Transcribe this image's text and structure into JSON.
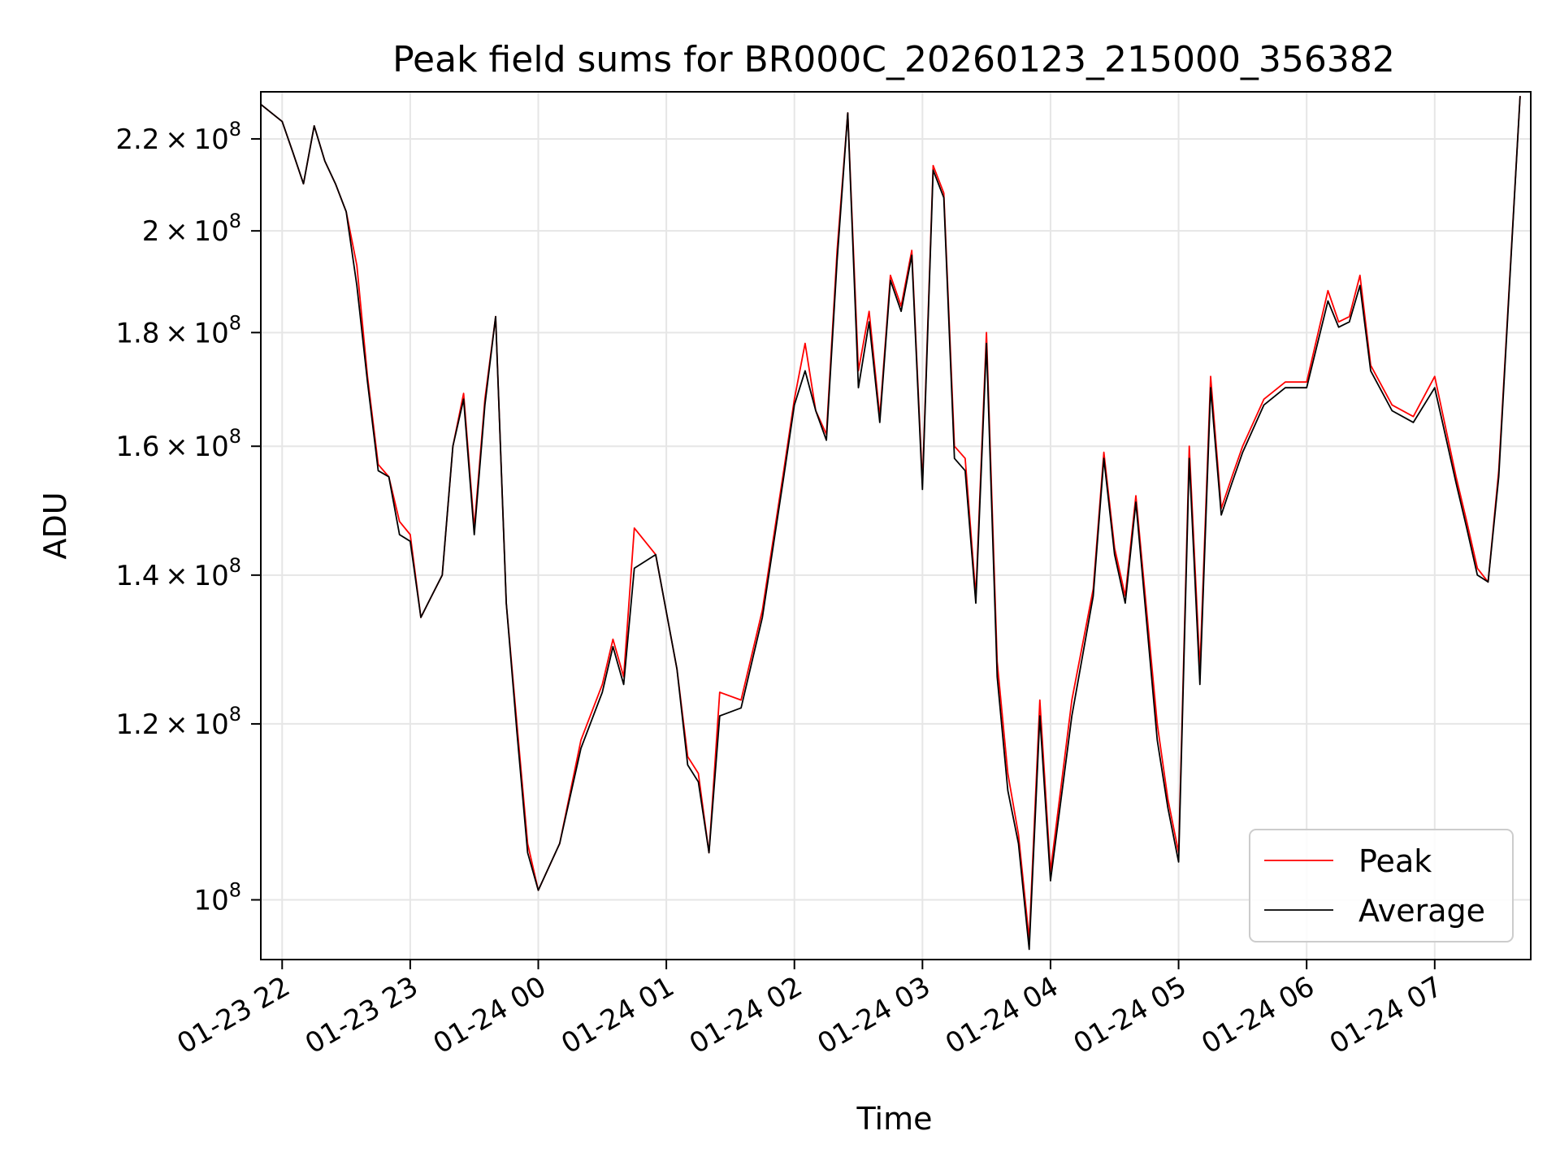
{
  "chart_data": {
    "type": "line",
    "title": "Peak field sums for BR000C_20260123_215000_356382",
    "xlabel": "Time",
    "ylabel": "ADU",
    "y_scale": "log",
    "grid": true,
    "legend_position": "bottom-right",
    "xlim": [
      "2026-01-23 21:50",
      "2026-01-24 07:45"
    ],
    "ylim": [
      94000000,
      231000000
    ],
    "x_ticks": [
      "01-23 22",
      "01-23 23",
      "01-24 00",
      "01-24 01",
      "01-24 02",
      "01-24 03",
      "01-24 04",
      "01-24 05",
      "01-24 06",
      "01-24 07"
    ],
    "y_ticks": [
      {
        "value": 100000000,
        "mantissa": "",
        "exponent": "8"
      },
      {
        "value": 120000000,
        "mantissa": "1.2",
        "exponent": "8"
      },
      {
        "value": 140000000,
        "mantissa": "1.4",
        "exponent": "8"
      },
      {
        "value": 160000000,
        "mantissa": "1.6",
        "exponent": "8"
      },
      {
        "value": 180000000,
        "mantissa": "1.8",
        "exponent": "8"
      },
      {
        "value": 200000000,
        "mantissa": "2",
        "exponent": "8"
      },
      {
        "value": 220000000,
        "mantissa": "2.2",
        "exponent": "8"
      }
    ],
    "series": [
      {
        "name": "Peak",
        "color": "#ff0000"
      },
      {
        "name": "Average",
        "color": "#000000"
      }
    ],
    "x": [
      "2026-01-23 21:50",
      "2026-01-23 22:00",
      "2026-01-23 22:05",
      "2026-01-23 22:10",
      "2026-01-23 22:15",
      "2026-01-23 22:20",
      "2026-01-23 22:25",
      "2026-01-23 22:30",
      "2026-01-23 22:35",
      "2026-01-23 22:40",
      "2026-01-23 22:45",
      "2026-01-23 22:50",
      "2026-01-23 22:55",
      "2026-01-23 23:00",
      "2026-01-23 23:05",
      "2026-01-23 23:10",
      "2026-01-23 23:15",
      "2026-01-23 23:20",
      "2026-01-23 23:25",
      "2026-01-23 23:30",
      "2026-01-23 23:35",
      "2026-01-23 23:40",
      "2026-01-23 23:45",
      "2026-01-23 23:50",
      "2026-01-23 23:55",
      "2026-01-24 00:00",
      "2026-01-24 00:10",
      "2026-01-24 00:20",
      "2026-01-24 00:30",
      "2026-01-24 00:35",
      "2026-01-24 00:40",
      "2026-01-24 00:45",
      "2026-01-24 00:55",
      "2026-01-24 01:05",
      "2026-01-24 01:10",
      "2026-01-24 01:15",
      "2026-01-24 01:20",
      "2026-01-24 01:25",
      "2026-01-24 01:35",
      "2026-01-24 01:45",
      "2026-01-24 01:55",
      "2026-01-24 02:00",
      "2026-01-24 02:05",
      "2026-01-24 02:10",
      "2026-01-24 02:15",
      "2026-01-24 02:20",
      "2026-01-24 02:25",
      "2026-01-24 02:30",
      "2026-01-24 02:35",
      "2026-01-24 02:40",
      "2026-01-24 02:45",
      "2026-01-24 02:50",
      "2026-01-24 02:55",
      "2026-01-24 03:00",
      "2026-01-24 03:05",
      "2026-01-24 03:10",
      "2026-01-24 03:15",
      "2026-01-24 03:20",
      "2026-01-24 03:25",
      "2026-01-24 03:30",
      "2026-01-24 03:35",
      "2026-01-24 03:40",
      "2026-01-24 03:45",
      "2026-01-24 03:50",
      "2026-01-24 03:55",
      "2026-01-24 04:00",
      "2026-01-24 04:10",
      "2026-01-24 04:20",
      "2026-01-24 04:25",
      "2026-01-24 04:30",
      "2026-01-24 04:35",
      "2026-01-24 04:40",
      "2026-01-24 04:50",
      "2026-01-24 04:55",
      "2026-01-24 05:00",
      "2026-01-24 05:05",
      "2026-01-24 05:10",
      "2026-01-24 05:15",
      "2026-01-24 05:20",
      "2026-01-24 05:25",
      "2026-01-24 05:30",
      "2026-01-24 05:40",
      "2026-01-24 05:50",
      "2026-01-24 06:00",
      "2026-01-24 06:10",
      "2026-01-24 06:15",
      "2026-01-24 06:20",
      "2026-01-24 06:25",
      "2026-01-24 06:30",
      "2026-01-24 06:40",
      "2026-01-24 06:50",
      "2026-01-24 07:00",
      "2026-01-24 07:10",
      "2026-01-24 07:15",
      "2026-01-24 07:20",
      "2026-01-24 07:25",
      "2026-01-24 07:30",
      "2026-01-24 07:40"
    ],
    "peak": [
      228000000,
      224000000,
      217000000,
      210000000,
      223000000,
      215000000,
      210000000,
      204000000,
      193000000,
      172000000,
      157000000,
      155000000,
      148000000,
      146000000,
      134000000,
      137000000,
      140000000,
      160000000,
      169000000,
      147000000,
      168000000,
      183000000,
      136000000,
      120000000,
      106000000,
      101000000,
      106000000,
      118000000,
      125000000,
      131000000,
      126000000,
      147000000,
      143000000,
      127000000,
      116000000,
      114000000,
      105000000,
      124000000,
      123000000,
      135000000,
      156000000,
      168000000,
      178000000,
      166000000,
      162000000,
      196000000,
      226000000,
      173000000,
      184000000,
      165000000,
      191000000,
      185000000,
      196000000,
      154000000,
      214000000,
      208000000,
      160000000,
      158000000,
      137000000,
      180000000,
      128000000,
      114000000,
      107000000,
      96000000,
      123000000,
      103000000,
      123000000,
      138000000,
      159000000,
      144000000,
      137000000,
      152000000,
      120000000,
      111000000,
      105000000,
      160000000,
      127000000,
      172000000,
      150000000,
      155000000,
      160000000,
      168000000,
      171000000,
      171000000,
      188000000,
      182000000,
      183000000,
      191000000,
      174000000,
      167000000,
      165000000,
      172000000,
      155000000,
      148000000,
      141000000,
      139000000,
      156000000,
      230000000
    ],
    "average": [
      228000000,
      224000000,
      217000000,
      210000000,
      223000000,
      215000000,
      210000000,
      204000000,
      189000000,
      171000000,
      156000000,
      155000000,
      146000000,
      145000000,
      134000000,
      137000000,
      140000000,
      160000000,
      168000000,
      146000000,
      167000000,
      183000000,
      136000000,
      119000000,
      105000000,
      101000000,
      106000000,
      117000000,
      124000000,
      130000000,
      125000000,
      141000000,
      143000000,
      127000000,
      115000000,
      113000000,
      105000000,
      121000000,
      122000000,
      134000000,
      155000000,
      167000000,
      173000000,
      166000000,
      161000000,
      194000000,
      226000000,
      170000000,
      182000000,
      164000000,
      190000000,
      184000000,
      195000000,
      153000000,
      213000000,
      207000000,
      158000000,
      156000000,
      136000000,
      178000000,
      126000000,
      112000000,
      106000000,
      95000000,
      121000000,
      102000000,
      121000000,
      137000000,
      158000000,
      143000000,
      136000000,
      151000000,
      118000000,
      110000000,
      104000000,
      158000000,
      125000000,
      170000000,
      149000000,
      154000000,
      159000000,
      167000000,
      170000000,
      170000000,
      186000000,
      181000000,
      182000000,
      189000000,
      173000000,
      166000000,
      164000000,
      170000000,
      154000000,
      147000000,
      140000000,
      139000000,
      155000000,
      230000000
    ]
  }
}
